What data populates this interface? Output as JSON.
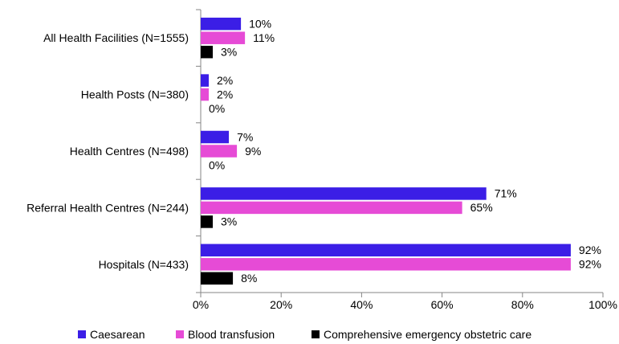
{
  "chart_data": {
    "type": "bar",
    "orientation": "horizontal",
    "categories": [
      "All Health Facilities (N=1555)",
      "Health Posts (N=380)",
      "Health Centres (N=498)",
      "Referral Health Centres (N=244)",
      "Hospitals (N=433)"
    ],
    "series": [
      {
        "name": "Caesarean",
        "color": "#3b1ee6",
        "values": [
          10,
          2,
          7,
          71,
          92
        ],
        "labels": [
          "10%",
          "2%",
          "7%",
          "71%",
          "92%"
        ]
      },
      {
        "name": "Blood transfusion",
        "color": "#e64bd6",
        "values": [
          11,
          2,
          9,
          65,
          92
        ],
        "labels": [
          "11%",
          "2%",
          "9%",
          "65%",
          "92%"
        ]
      },
      {
        "name": "Comprehensive emergency obstetric care",
        "color": "#000000",
        "values": [
          3,
          0,
          0,
          3,
          8
        ],
        "labels": [
          "3%",
          "0%",
          "0%",
          "3%",
          "8%"
        ]
      }
    ],
    "xlim": [
      0,
      100
    ],
    "xticks": [
      "0%",
      "20%",
      "40%",
      "60%",
      "80%",
      "100%"
    ],
    "grid": false,
    "legend_position": "bottom"
  }
}
